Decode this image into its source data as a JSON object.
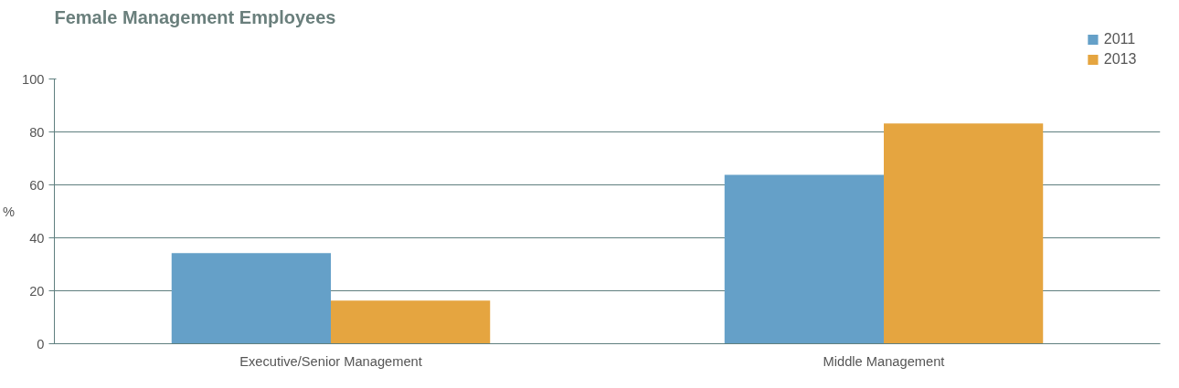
{
  "chart_data": {
    "type": "bar",
    "title": "Female Management Employees",
    "ylabel": "%",
    "categories": [
      "Executive/Senior Management",
      "Middle Management"
    ],
    "series": [
      {
        "name": "2011",
        "color": "#65a0c8",
        "values": [
          34.2,
          63.8
        ]
      },
      {
        "name": "2013",
        "color": "#e5a540",
        "values": [
          16.3,
          83.2
        ]
      }
    ],
    "ylim": [
      0,
      100
    ],
    "yticks": [
      0,
      20,
      40,
      60,
      80,
      100
    ],
    "grid": "y",
    "legend": "top right"
  }
}
